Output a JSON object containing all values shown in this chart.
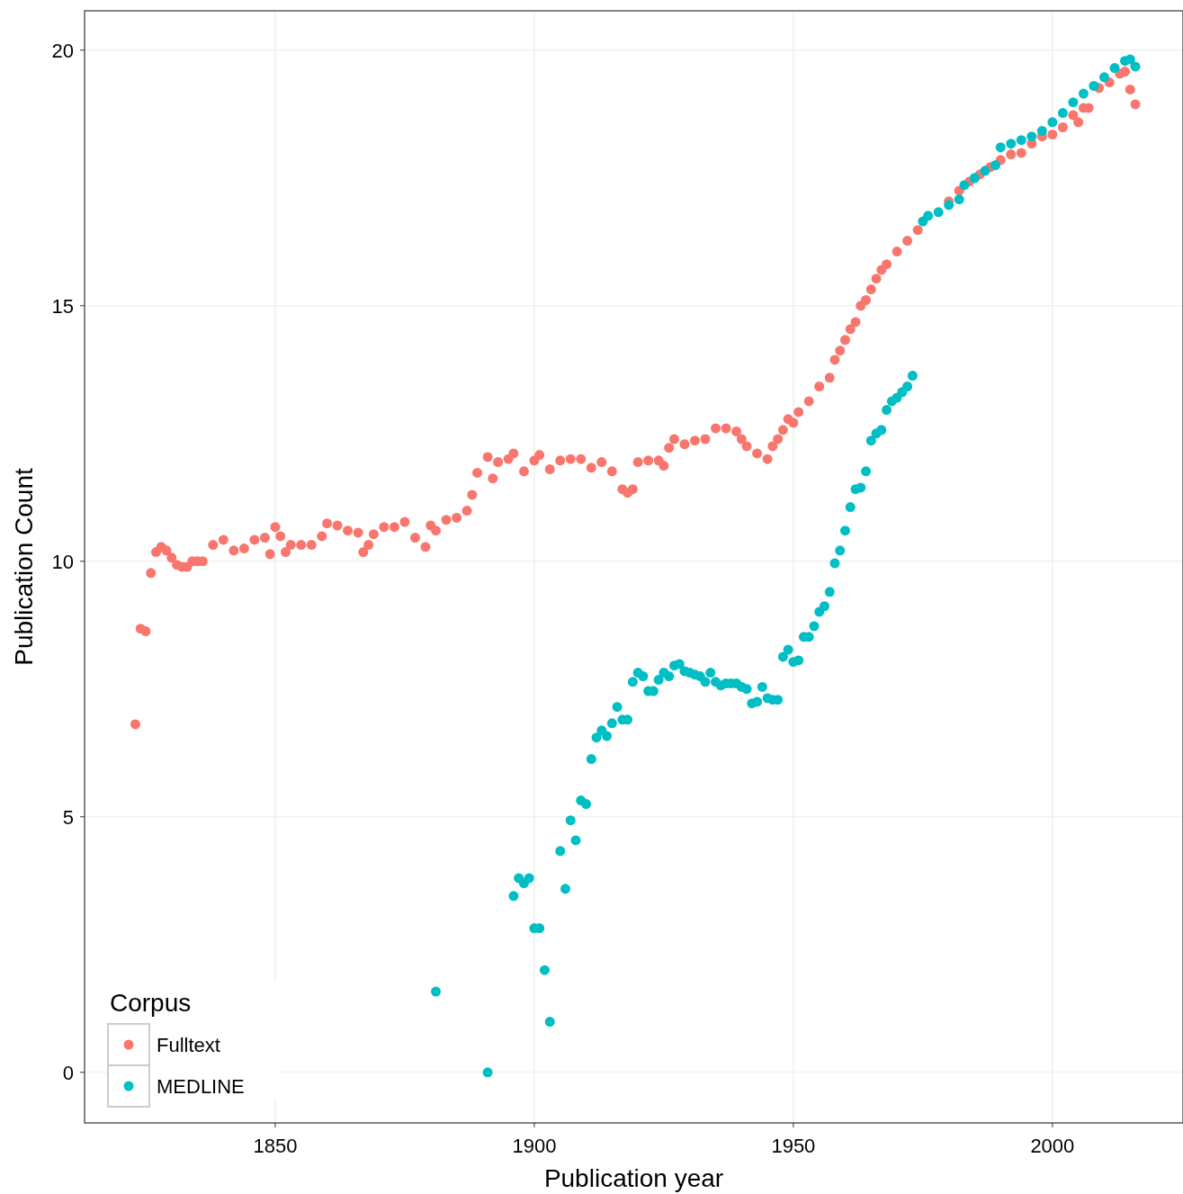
{
  "chart_data": {
    "type": "scatter",
    "xlabel": "Publication year",
    "ylabel": "Publication Count",
    "legend_title": "Corpus",
    "legend": "bottom left",
    "grid": true,
    "marker": "circle",
    "xlim": [
      1813.2,
      2025.2
    ],
    "ylim": [
      -0.99,
      20.77
    ],
    "xticks": [
      1850,
      1900,
      1950,
      2000
    ],
    "yticks": [
      0,
      5,
      10,
      15,
      20
    ],
    "series": [
      {
        "name": "Fulltext",
        "color": "#f8766d",
        "x": [
          1823,
          1824,
          1825,
          1826,
          1827,
          1828,
          1829,
          1830,
          1831,
          1832,
          1833,
          1834,
          1835,
          1836,
          1838,
          1840,
          1842,
          1844,
          1846,
          1848,
          1849,
          1850,
          1851,
          1852,
          1853,
          1855,
          1857,
          1859,
          1860,
          1862,
          1864,
          1866,
          1867,
          1868,
          1869,
          1871,
          1873,
          1875,
          1877,
          1879,
          1880,
          1881,
          1883,
          1885,
          1887,
          1888,
          1889,
          1891,
          1892,
          1893,
          1895,
          1896,
          1898,
          1900,
          1901,
          1903,
          1905,
          1907,
          1909,
          1911,
          1913,
          1915,
          1917,
          1918,
          1919,
          1920,
          1922,
          1924,
          1925,
          1926,
          1927,
          1929,
          1931,
          1933,
          1935,
          1937,
          1939,
          1940,
          1941,
          1943,
          1945,
          1946,
          1947,
          1948,
          1949,
          1950,
          1951,
          1953,
          1955,
          1957,
          1958,
          1959,
          1960,
          1961,
          1962,
          1963,
          1964,
          1965,
          1966,
          1967,
          1968,
          1970,
          1972,
          1974,
          1980,
          1982,
          1984,
          1986,
          1988,
          1990,
          1992,
          1994,
          1996,
          1998,
          2000,
          2002,
          2004,
          2005,
          2006,
          2007,
          2009,
          2011,
          2013,
          2014,
          2015,
          2016
        ],
        "values": [
          6.81,
          8.68,
          8.63,
          9.77,
          10.18,
          10.28,
          10.21,
          10.07,
          9.93,
          9.89,
          9.89,
          10.0,
          10.0,
          10.0,
          10.32,
          10.42,
          10.21,
          10.25,
          10.42,
          10.46,
          10.14,
          10.67,
          10.49,
          10.18,
          10.32,
          10.32,
          10.32,
          10.49,
          10.74,
          10.7,
          10.6,
          10.56,
          10.18,
          10.32,
          10.53,
          10.67,
          10.67,
          10.77,
          10.46,
          10.28,
          10.7,
          10.6,
          10.81,
          10.85,
          10.99,
          11.3,
          11.73,
          12.04,
          11.62,
          11.94,
          12.0,
          12.11,
          11.76,
          11.97,
          12.08,
          11.8,
          11.97,
          12.0,
          12.0,
          11.83,
          11.94,
          11.76,
          11.41,
          11.34,
          11.41,
          11.94,
          11.97,
          11.97,
          11.87,
          12.22,
          12.39,
          12.29,
          12.36,
          12.39,
          12.6,
          12.6,
          12.54,
          12.39,
          12.25,
          12.11,
          12.0,
          12.25,
          12.39,
          12.57,
          12.78,
          12.71,
          12.92,
          13.13,
          13.42,
          13.59,
          13.94,
          14.12,
          14.33,
          14.54,
          14.68,
          15.0,
          15.11,
          15.32,
          15.53,
          15.7,
          15.81,
          16.06,
          16.27,
          16.48,
          17.04,
          17.25,
          17.43,
          17.57,
          17.71,
          17.85,
          17.96,
          17.99,
          18.17,
          18.31,
          18.35,
          18.49,
          18.73,
          18.59,
          18.87,
          18.87,
          19.26,
          19.37,
          19.54,
          19.58,
          19.23,
          18.94
        ]
      },
      {
        "name": "MEDLINE",
        "color": "#00bfc4",
        "x": [
          1881,
          1891,
          1896,
          1897,
          1898,
          1899,
          1900,
          1901,
          1902,
          1903,
          1905,
          1906,
          1907,
          1908,
          1909,
          1910,
          1911,
          1912,
          1913,
          1914,
          1915,
          1916,
          1917,
          1918,
          1919,
          1920,
          1921,
          1922,
          1923,
          1924,
          1925,
          1926,
          1927,
          1928,
          1929,
          1930,
          1931,
          1932,
          1933,
          1934,
          1935,
          1936,
          1937,
          1938,
          1939,
          1940,
          1941,
          1942,
          1943,
          1944,
          1945,
          1946,
          1947,
          1948,
          1949,
          1950,
          1951,
          1952,
          1953,
          1954,
          1955,
          1956,
          1957,
          1958,
          1959,
          1960,
          1961,
          1962,
          1963,
          1964,
          1965,
          1966,
          1967,
          1968,
          1969,
          1970,
          1971,
          1972,
          1973,
          1975,
          1976,
          1978,
          1980,
          1982,
          1983,
          1985,
          1987,
          1989,
          1990,
          1992,
          1994,
          1996,
          1998,
          2000,
          2002,
          2004,
          2006,
          2008,
          2010,
          2012,
          2014,
          2015,
          2016
        ],
        "values": [
          1.58,
          0,
          3.45,
          3.8,
          3.7,
          3.8,
          2.82,
          2.82,
          2.0,
          0.99,
          4.33,
          3.59,
          4.93,
          4.54,
          5.32,
          5.25,
          6.13,
          6.55,
          6.69,
          6.58,
          6.83,
          7.15,
          6.9,
          6.9,
          7.64,
          7.82,
          7.75,
          7.46,
          7.46,
          7.68,
          7.82,
          7.75,
          7.96,
          7.99,
          7.85,
          7.82,
          7.78,
          7.75,
          7.64,
          7.82,
          7.64,
          7.57,
          7.61,
          7.61,
          7.61,
          7.54,
          7.5,
          7.22,
          7.25,
          7.54,
          7.32,
          7.29,
          7.29,
          8.13,
          8.27,
          8.03,
          8.06,
          8.52,
          8.52,
          8.73,
          9.01,
          9.12,
          9.4,
          9.96,
          10.21,
          10.6,
          11.06,
          11.41,
          11.44,
          11.76,
          12.36,
          12.5,
          12.57,
          12.96,
          13.13,
          13.2,
          13.31,
          13.42,
          13.63,
          16.65,
          16.76,
          16.83,
          16.97,
          17.08,
          17.36,
          17.5,
          17.64,
          17.75,
          18.1,
          18.17,
          18.24,
          18.31,
          18.42,
          18.59,
          18.77,
          18.98,
          19.15,
          19.3,
          19.47,
          19.65,
          19.79,
          19.82,
          19.68
        ]
      }
    ]
  }
}
